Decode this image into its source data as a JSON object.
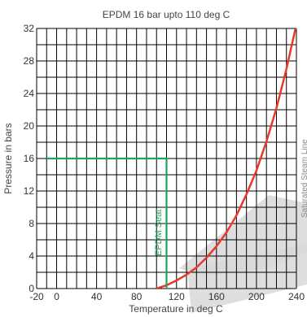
{
  "chart_data": {
    "type": "line",
    "title": "EPDM 16 bar upto 110 deg C",
    "xlabel": "Temperature in deg C",
    "ylabel": "Pressure in bars",
    "xlim": [
      -20,
      240
    ],
    "ylim": [
      0,
      32
    ],
    "x_ticks": [
      "-20",
      "0",
      "40",
      "80",
      "120",
      "160",
      "200",
      "240"
    ],
    "x_tick_values": [
      -20,
      0,
      40,
      80,
      120,
      160,
      200,
      240
    ],
    "y_ticks": [
      "0",
      "4",
      "8",
      "12",
      "16",
      "20",
      "24",
      "28",
      "32"
    ],
    "y_tick_values": [
      0,
      4,
      8,
      12,
      16,
      20,
      24,
      28,
      32
    ],
    "grid": true,
    "series": [
      {
        "name": "Saturated Steam Line",
        "color": "#e8392b",
        "x": [
          100,
          110,
          120,
          130,
          140,
          150,
          160,
          170,
          180,
          190,
          200,
          210,
          220,
          230,
          240
        ],
        "y": [
          0,
          0.4,
          1.0,
          1.7,
          2.6,
          3.8,
          5.2,
          6.9,
          9.0,
          11.6,
          14.5,
          18.1,
          22.2,
          27.0,
          32.5
        ]
      },
      {
        "name": "EPDM Seat",
        "color": "#1fa35a",
        "x": [
          -10,
          110,
          110
        ],
        "y": [
          16,
          16,
          0
        ]
      }
    ],
    "annotations": [
      {
        "text": "EPDM Seat",
        "color": "#1fa35a"
      },
      {
        "text": "Saturated Steam Line",
        "color": "#8a8a8a"
      }
    ]
  }
}
